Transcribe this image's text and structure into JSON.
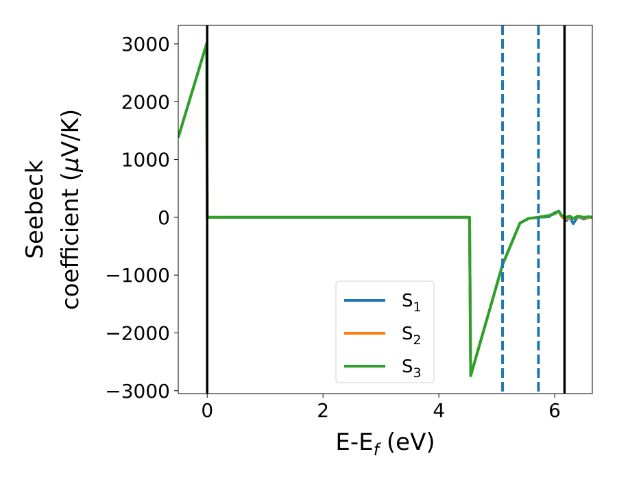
{
  "chart_data": {
    "type": "line",
    "xlabel": "E-E",
    "xlabel_sub": "f",
    "xlabel_unit": " (eV)",
    "ylabel_line1": "Seebeck",
    "ylabel_line2": "coefficient  (",
    "ylabel_mu": "μ",
    "ylabel_unit": "V/K)",
    "xlim": [
      -0.5,
      6.65
    ],
    "ylim": [
      -3050,
      3320
    ],
    "xticks": [
      0,
      2,
      4,
      6
    ],
    "xtick_labels": [
      "0",
      "2",
      "4",
      "6"
    ],
    "yticks": [
      -3000,
      -2000,
      -1000,
      0,
      1000,
      2000,
      3000
    ],
    "ytick_labels": [
      "−3000",
      "−2000",
      "−1000",
      "0",
      "1000",
      "2000",
      "3000"
    ],
    "grid": false,
    "legend_position": "lower-center",
    "vlines_solid": [
      0.0,
      6.17
    ],
    "vlines_dashed": [
      5.1,
      5.72
    ],
    "series": [
      {
        "name": "S",
        "sub": "1",
        "color": "#1f77b4",
        "x": [
          -0.5,
          -0.01,
          0.0,
          0.02,
          4.52,
          4.53,
          4.55,
          5.1,
          5.4,
          5.55,
          5.72,
          5.9,
          6.0,
          6.07,
          6.12,
          6.2,
          6.26,
          6.32,
          6.4,
          6.5,
          6.6,
          6.65
        ],
        "y": [
          1380,
          3000,
          0,
          0,
          0,
          0,
          -2740,
          -820,
          -100,
          -20,
          0,
          10,
          80,
          100,
          20,
          -60,
          10,
          -110,
          10,
          -30,
          0,
          -10
        ]
      },
      {
        "name": "S",
        "sub": "2",
        "color": "#ff7f0e",
        "x": [
          -0.5,
          -0.01,
          0.0,
          0.02,
          4.52,
          4.53,
          4.55,
          5.1,
          5.4,
          5.55,
          5.72,
          5.9,
          6.0,
          6.07,
          6.12,
          6.2,
          6.26,
          6.32,
          6.4,
          6.5,
          6.6,
          6.65
        ],
        "y": [
          1380,
          3000,
          0,
          0,
          0,
          0,
          -2740,
          -820,
          -100,
          -20,
          0,
          30,
          60,
          110,
          10,
          -30,
          10,
          -20,
          10,
          -10,
          0,
          -10
        ]
      },
      {
        "name": "S",
        "sub": "3",
        "color": "#2ca02c",
        "x": [
          -0.5,
          -0.01,
          0.0,
          0.02,
          4.52,
          4.53,
          4.55,
          5.1,
          5.4,
          5.55,
          5.72,
          5.9,
          6.0,
          6.07,
          6.12,
          6.2,
          6.26,
          6.32,
          6.4,
          6.5,
          6.6,
          6.65
        ],
        "y": [
          1380,
          3000,
          0,
          0,
          0,
          0,
          -2740,
          -820,
          -100,
          -20,
          0,
          30,
          60,
          110,
          30,
          0,
          20,
          -20,
          20,
          0,
          10,
          0
        ]
      }
    ]
  }
}
